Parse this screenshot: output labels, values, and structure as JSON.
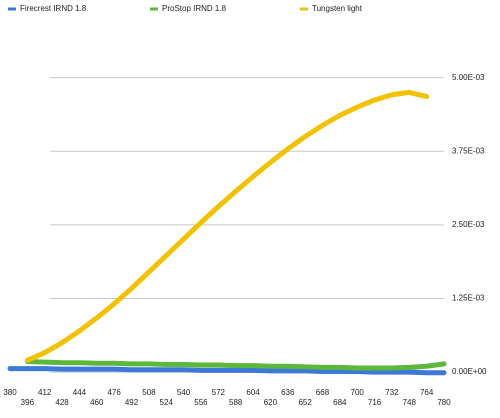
{
  "chart_data": {
    "type": "line",
    "categories": [
      "380",
      "396",
      "412",
      "428",
      "444",
      "460",
      "476",
      "492",
      "508",
      "524",
      "540",
      "556",
      "572",
      "588",
      "604",
      "620",
      "636",
      "652",
      "668",
      "684",
      "700",
      "716",
      "732",
      "748",
      "764",
      "780"
    ],
    "series": [
      {
        "name": "Firecrest IRND 1.8",
        "color": "#3c78d8",
        "values": [
          6e-05,
          6e-05,
          6e-05,
          5e-05,
          5e-05,
          5e-05,
          5e-05,
          4e-05,
          4e-05,
          4e-05,
          4e-05,
          3e-05,
          3e-05,
          3e-05,
          3e-05,
          2e-05,
          2e-05,
          2e-05,
          1e-05,
          1e-05,
          1e-05,
          0.0,
          0.0,
          0.0,
          -1e-05,
          -1e-05
        ]
      },
      {
        "name": "ProStop IRND 1.8",
        "color": "#5cb83a",
        "values": [
          null,
          0.00018,
          0.00017,
          0.00016,
          0.00016,
          0.00015,
          0.00015,
          0.00014,
          0.00014,
          0.00013,
          0.00013,
          0.00012,
          0.00012,
          0.00011,
          0.00011,
          0.0001,
          0.0001,
          9e-05,
          8e-05,
          8e-05,
          7e-05,
          7e-05,
          7e-05,
          8e-05,
          0.0001,
          0.00014
        ]
      },
      {
        "name": "Tungsten light",
        "color": "#f2c200",
        "values": [
          null,
          0.0002,
          0.00033,
          0.0005,
          0.0007,
          0.00092,
          0.00116,
          0.00142,
          0.0017,
          0.00198,
          0.00226,
          0.00254,
          0.00281,
          0.00307,
          0.00332,
          0.00356,
          0.00379,
          0.004,
          0.00419,
          0.00436,
          0.0045,
          0.00462,
          0.00471,
          0.00475,
          0.00468,
          null
        ]
      }
    ],
    "ylim": [
      -0.0001,
      0.0053
    ],
    "yticks": [
      {
        "value": 0,
        "label": "0.00E+00"
      },
      {
        "value": 0.00125,
        "label": "1.25E-03"
      },
      {
        "value": 0.0025,
        "label": "2.50E-03"
      },
      {
        "value": 0.00375,
        "label": "3.75E-03"
      },
      {
        "value": 0.005,
        "label": "5.00E-03"
      }
    ],
    "grid": true
  }
}
